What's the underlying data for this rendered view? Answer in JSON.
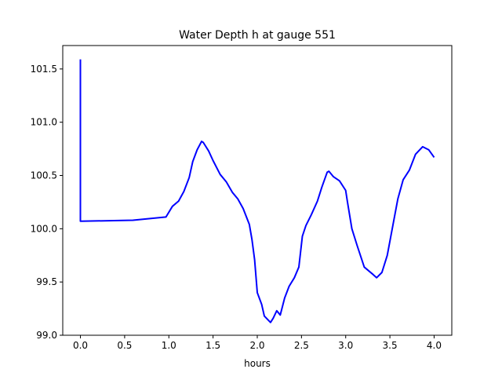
{
  "chart_data": {
    "type": "line",
    "title": "Water Depth h at gauge 551",
    "xlabel": "hours",
    "ylabel": "",
    "xlim": [
      -0.2,
      4.2
    ],
    "ylim": [
      99.0,
      101.72
    ],
    "xticks": [
      "0.0",
      "0.5",
      "1.0",
      "1.5",
      "2.0",
      "2.5",
      "3.0",
      "3.5",
      "4.0"
    ],
    "xtick_values": [
      0,
      0.5,
      1,
      1.5,
      2,
      2.5,
      3,
      3.5,
      4
    ],
    "yticks": [
      "99.0",
      "99.5",
      "100.0",
      "100.5",
      "101.0",
      "101.5"
    ],
    "ytick_values": [
      99,
      99.5,
      100,
      100.5,
      101,
      101.5
    ],
    "grid": false,
    "series": [
      {
        "name": "h",
        "color": "#0000ff",
        "x": [
          0,
          0,
          0.594,
          0.967,
          1.04,
          1.11,
          1.17,
          1.23,
          1.27,
          1.32,
          1.37,
          1.39,
          1.45,
          1.5,
          1.58,
          1.65,
          1.72,
          1.78,
          1.84,
          1.91,
          1.94,
          1.97,
          2.0,
          2.05,
          2.08,
          2.15,
          2.18,
          2.22,
          2.26,
          2.31,
          2.36,
          2.42,
          2.47,
          2.51,
          2.55,
          2.61,
          2.68,
          2.73,
          2.79,
          2.81,
          2.86,
          2.93,
          3.0,
          3.02,
          3.07,
          3.13,
          3.21,
          3.31,
          3.35,
          3.41,
          3.47,
          3.54,
          3.59,
          3.65,
          3.72,
          3.79,
          3.87,
          3.94,
          4.0
        ],
        "y": [
          101.59,
          100.07,
          100.08,
          100.11,
          100.21,
          100.26,
          100.35,
          100.48,
          100.63,
          100.74,
          100.82,
          100.81,
          100.73,
          100.64,
          100.51,
          100.44,
          100.34,
          100.28,
          100.19,
          100.04,
          99.9,
          99.71,
          99.4,
          99.29,
          99.18,
          99.12,
          99.16,
          99.23,
          99.19,
          99.35,
          99.46,
          99.54,
          99.64,
          99.93,
          100.03,
          100.13,
          100.26,
          100.39,
          100.53,
          100.54,
          100.49,
          100.45,
          100.36,
          100.25,
          100.0,
          99.84,
          99.64,
          99.57,
          99.54,
          99.59,
          99.75,
          100.06,
          100.28,
          100.46,
          100.55,
          100.7,
          100.77,
          100.74,
          100.67
        ]
      }
    ]
  }
}
